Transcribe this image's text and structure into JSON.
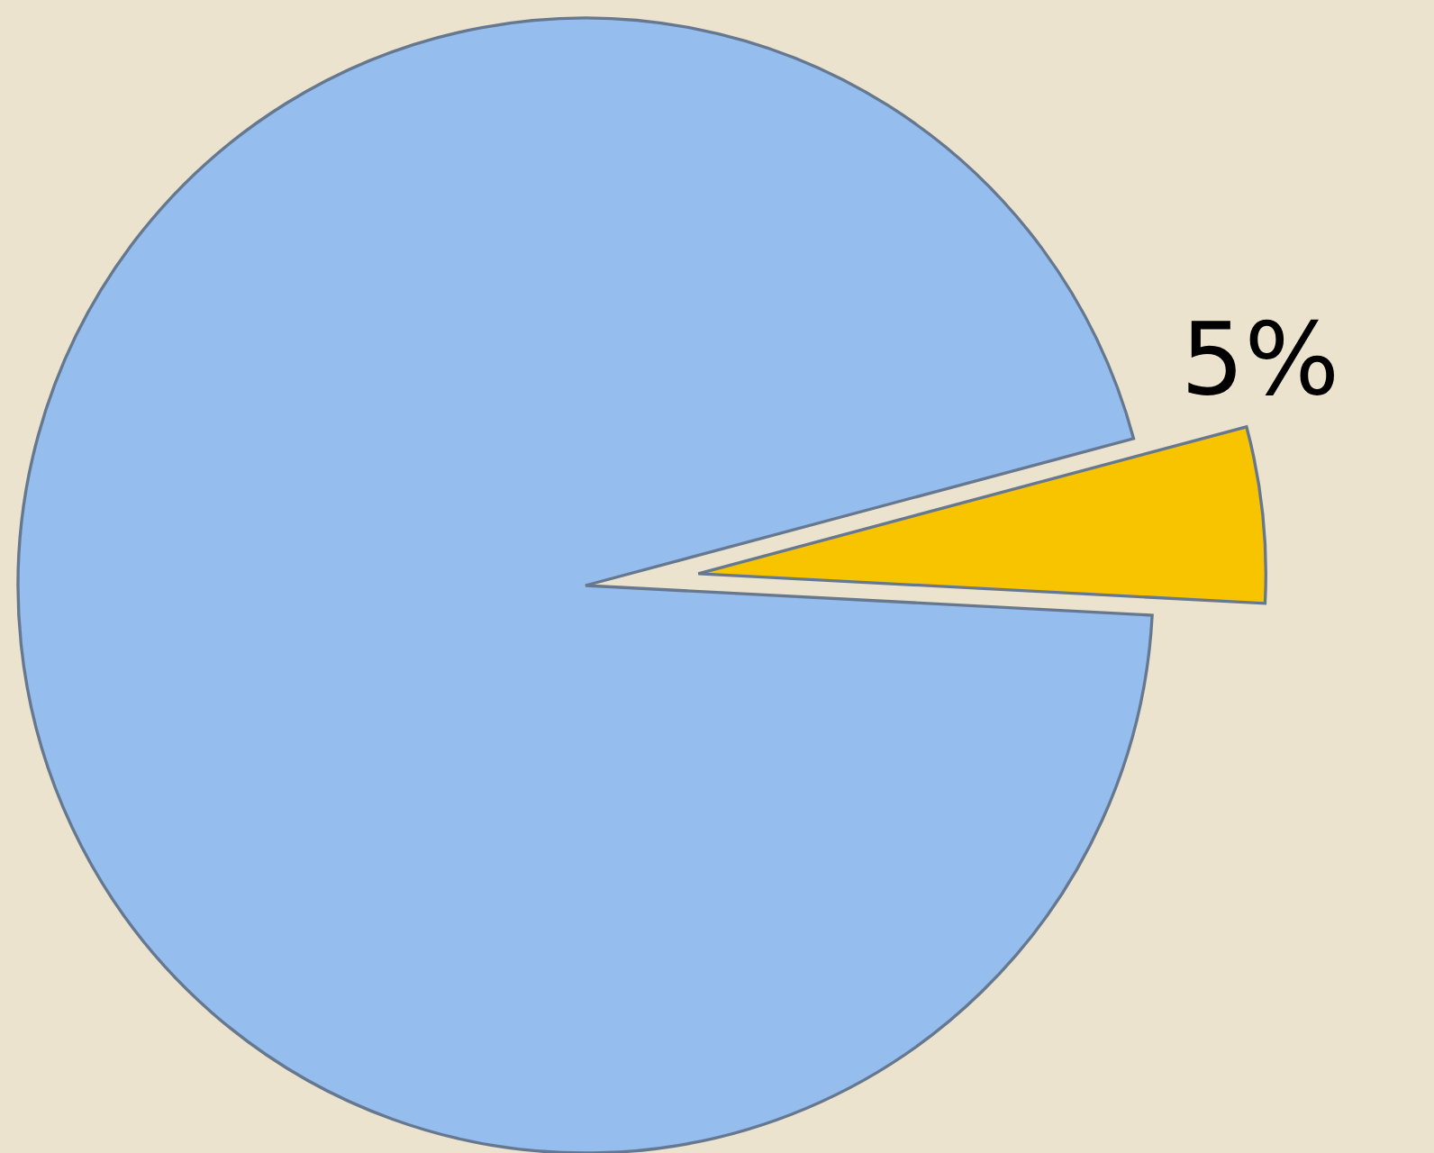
{
  "chart_data": {
    "type": "pie",
    "categories": [
      null,
      null
    ],
    "values": [
      95,
      5
    ],
    "colors": [
      "#95bdee",
      "#f8c400"
    ],
    "value_labels": [
      null,
      "5%"
    ]
  }
}
